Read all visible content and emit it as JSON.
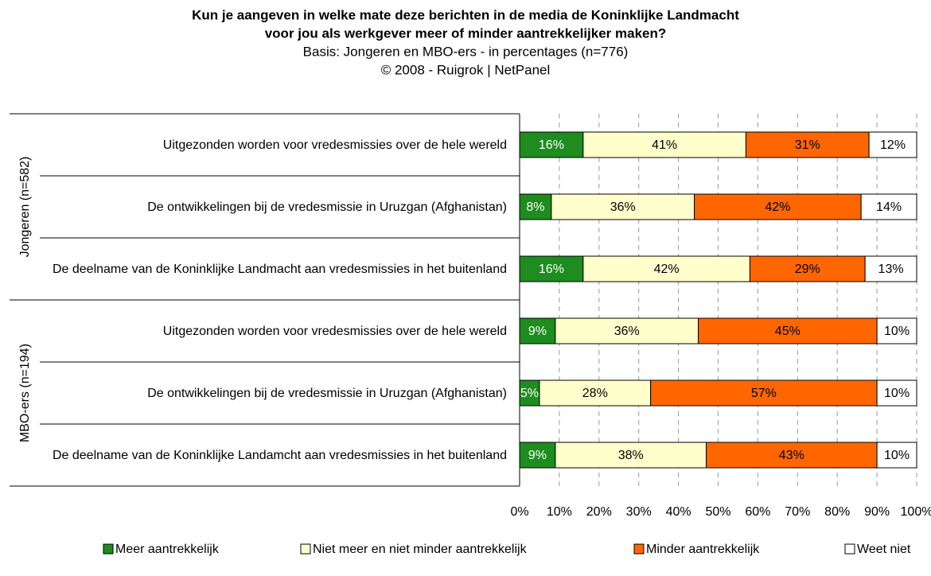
{
  "chart_data": {
    "type": "stacked_barh",
    "title": [
      "Kun je aangeven in welke mate deze berichten in de media de Koninklijke Landmacht",
      "voor jou als werkgever meer of minder aantrekkelijker maken?"
    ],
    "subtitle": [
      "Basis: Jongeren en MBO-ers - in percentages (n=776)",
      "©  2008 - Ruigrok | NetPanel"
    ],
    "groups": [
      {
        "name": "Jongeren (n=582)",
        "categories": [
          "Uitgezonden worden voor vredesmissies over de hele wereld",
          "De ontwikkelingen bij de vredesmissie in Uruzgan (Afghanistan)",
          "De deelname van de Koninklijke Landmacht aan vredesmissies in het buitenland"
        ]
      },
      {
        "name": "MBO-ers (n=194)",
        "categories": [
          "Uitgezonden worden voor vredesmissies over de hele wereld",
          "De ontwikkelingen bij de vredesmissie in Uruzgan (Afghanistan)",
          "De deelname van de Koninklijke Landamcht aan vredesmissies in het buitenland"
        ]
      }
    ],
    "series": [
      {
        "name": "Meer aantrekkelijk",
        "color": "#1e8c1e",
        "label_color": "#ffffff",
        "values": [
          16,
          8,
          16,
          9,
          5,
          9
        ],
        "value_labels": [
          "16%",
          "8%",
          "16%",
          "9%",
          "5%",
          "9%"
        ]
      },
      {
        "name": "Niet meer en niet minder aantrekkelijk",
        "color": "#ffffcc",
        "label_color": "#000000",
        "values": [
          41,
          36,
          42,
          36,
          28,
          38
        ],
        "value_labels": [
          "41%",
          "36%",
          "42%",
          "36%",
          "28%",
          "38%"
        ]
      },
      {
        "name": "Minder aantrekkelijk",
        "color": "#ff6600",
        "label_color": "#000000",
        "values": [
          31,
          42,
          29,
          45,
          57,
          43
        ],
        "value_labels": [
          "31%",
          "42%",
          "29%",
          "45%",
          "57%",
          "43%"
        ]
      },
      {
        "name": "Weet niet",
        "color": "#ffffff",
        "label_color": "#000000",
        "values": [
          12,
          14,
          13,
          10,
          10,
          10
        ],
        "value_labels": [
          "12%",
          "14%",
          "13%",
          "10%",
          "10%",
          "10%"
        ]
      }
    ],
    "xlim": [
      0,
      100
    ],
    "xticks": [
      {
        "value": 0,
        "label": "0%"
      },
      {
        "value": 10,
        "label": "10%"
      },
      {
        "value": 20,
        "label": "20%"
      },
      {
        "value": 30,
        "label": "30%"
      },
      {
        "value": 40,
        "label": "40%"
      },
      {
        "value": 50,
        "label": "50%"
      },
      {
        "value": 60,
        "label": "60%"
      },
      {
        "value": 70,
        "label": "70%"
      },
      {
        "value": 80,
        "label": "80%"
      },
      {
        "value": 90,
        "label": "90%"
      },
      {
        "value": 100,
        "label": "100%"
      }
    ],
    "grid": true,
    "legend": "bottom"
  }
}
